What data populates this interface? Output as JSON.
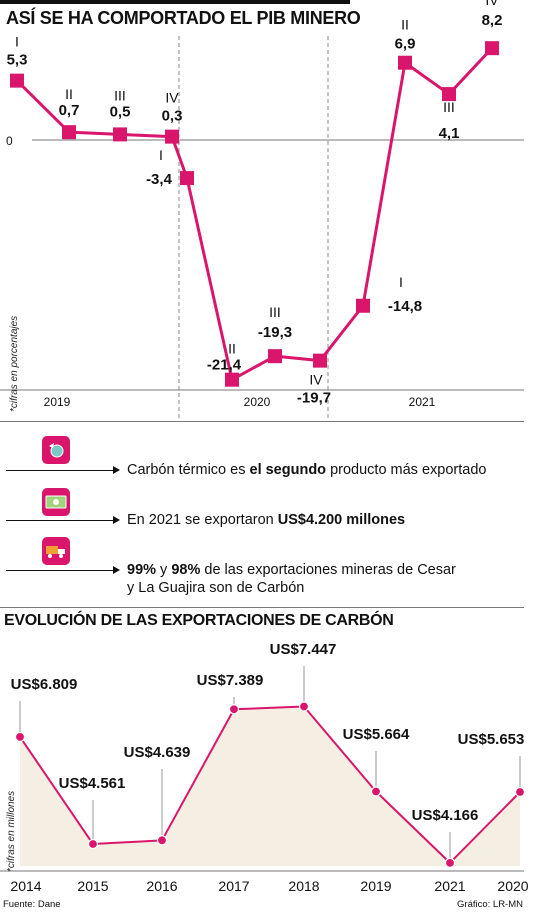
{
  "charts": {
    "pib": {
      "title": "ASÍ SE HA COMPORTADO EL PIB MINERO",
      "zero_label": "0",
      "ylabel": "*cifras en porcentajes",
      "years": [
        "2019",
        "2020",
        "2021"
      ]
    },
    "exports": {
      "title": "EVOLUCIÓN DE LAS EXPORTACIONES DE CARBÓN",
      "ylabel": "*cifras en millones"
    }
  },
  "facts": [
    {
      "pre": "Carbón térmico es ",
      "bold": "el segundo",
      "post": " producto más exportado",
      "line2": "",
      "icon": "globe-icon"
    },
    {
      "pre": "En 2021 se exportaron ",
      "bold": "US$4.200 millones",
      "post": "",
      "line2": "",
      "icon": "money-icon"
    },
    {
      "pre": "",
      "bold": "99%",
      "mid": " y ",
      "bold2": "98%",
      "post": " de las exportaciones mineras de Cesar",
      "line2": "y La Guajira son de Carbón",
      "icon": "truck-icon"
    }
  ],
  "footer": {
    "source": "Fuente: Dane",
    "credit": "Gráfico: LR-MN"
  },
  "colors": {
    "accent": "#d9166b",
    "area_fill": "#f5efe3",
    "text": "#111111"
  },
  "chart_data": [
    {
      "type": "line",
      "title": "ASÍ SE HA COMPORTADO EL PIB MINERO",
      "ylabel": "*cifras en porcentajes",
      "x": [
        "2019-I",
        "2019-II",
        "2019-III",
        "2019-IV",
        "2020-I",
        "2020-II",
        "2020-III",
        "2020-IV",
        "2021-I",
        "2021-II",
        "2021-III",
        "2021-IV"
      ],
      "quarters": [
        "I",
        "II",
        "III",
        "IV",
        "I",
        "II",
        "III",
        "IV",
        "I",
        "II",
        "III",
        "IV"
      ],
      "values": [
        5.3,
        0.7,
        0.5,
        0.3,
        -3.4,
        -21.4,
        -19.3,
        -19.7,
        -14.8,
        6.9,
        4.1,
        8.2
      ],
      "labels": [
        "5,3",
        "0,7",
        "0,5",
        "0,3",
        "-3,4",
        "-21,4",
        "-19,3",
        "-19,7",
        "-14,8",
        "6,9",
        "4,1",
        "8,2"
      ],
      "groups": [
        "2019",
        "2020",
        "2021"
      ],
      "ylim": [
        -22,
        9
      ]
    },
    {
      "type": "area",
      "title": "EVOLUCIÓN DE LAS EXPORTACIONES DE CARBÓN",
      "ylabel": "*cifras en millones",
      "categories": [
        "2014",
        "2015",
        "2016",
        "2017",
        "2018",
        "2019",
        "2021",
        "2020"
      ],
      "values": [
        6809,
        4561,
        4639,
        7389,
        7447,
        5664,
        4166,
        5653
      ],
      "labels": [
        "US$6.809",
        "US$4.561",
        "US$4.639",
        "US$7.389",
        "US$7.447",
        "US$5.664",
        "US$4.166",
        "US$5.653"
      ],
      "ylim": [
        4100,
        7500
      ]
    }
  ]
}
